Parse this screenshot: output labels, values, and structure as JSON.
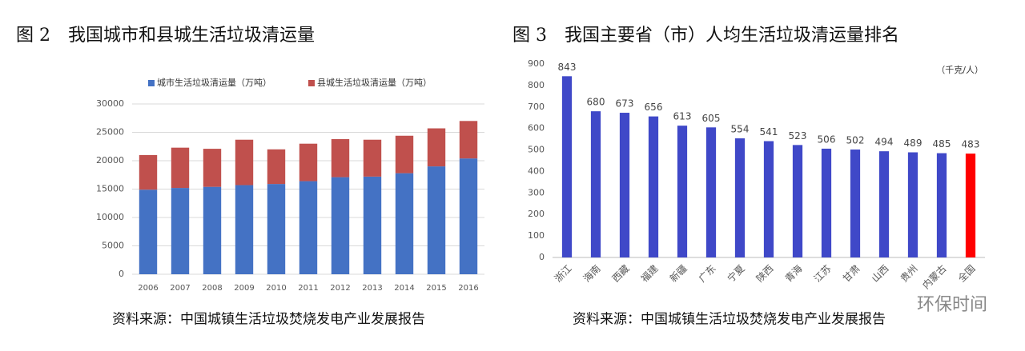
{
  "chart_data": [
    {
      "type": "stacked_bar",
      "title": "图 2　我国城市和县城生活垃圾清运量",
      "categories": [
        "2006",
        "2007",
        "2008",
        "2009",
        "2010",
        "2011",
        "2012",
        "2013",
        "2014",
        "2015",
        "2016"
      ],
      "series": [
        {
          "name": "城市生活垃圾清运量（万吨）",
          "color": "#4472c4",
          "values": [
            14900,
            15200,
            15400,
            15700,
            15900,
            16400,
            17100,
            17200,
            17800,
            19000,
            20400
          ]
        },
        {
          "name": "县城生活垃圾清运量（万吨）",
          "color": "#c0504d",
          "values": [
            6100,
            7100,
            6700,
            8000,
            6100,
            6600,
            6700,
            6500,
            6600,
            6700,
            6600
          ]
        }
      ],
      "ylim": [
        0,
        30000
      ],
      "yticks": [
        0,
        5000,
        10000,
        15000,
        20000,
        25000,
        30000
      ],
      "grid": true,
      "legend": "top",
      "source": "资料来源：中国城镇生活垃圾焚烧发电产业发展报告"
    },
    {
      "type": "bar",
      "title": "图 3　我国主要省（市）人均生活垃圾清运量排名",
      "unit_label": "（千克/人）",
      "categories": [
        "浙江",
        "海南",
        "西藏",
        "福建",
        "新疆",
        "广东",
        "宁夏",
        "陕西",
        "青海",
        "江苏",
        "甘肃",
        "山西",
        "贵州",
        "内蒙古",
        "全国"
      ],
      "values": [
        843,
        680,
        673,
        656,
        613,
        605,
        554,
        541,
        523,
        506,
        502,
        494,
        489,
        485,
        483
      ],
      "colors": [
        "#3f48c8",
        "#3f48c8",
        "#3f48c8",
        "#3f48c8",
        "#3f48c8",
        "#3f48c8",
        "#3f48c8",
        "#3f48c8",
        "#3f48c8",
        "#3f48c8",
        "#3f48c8",
        "#3f48c8",
        "#3f48c8",
        "#3f48c8",
        "#ff0000"
      ],
      "ylim": [
        0,
        900
      ],
      "yticks": [
        0,
        100,
        200,
        300,
        400,
        500,
        600,
        700,
        800,
        900
      ],
      "grid": false,
      "source": "资料来源：中国城镇生活垃圾焚烧发电产业发展报告"
    }
  ],
  "watermark": "环保时间"
}
